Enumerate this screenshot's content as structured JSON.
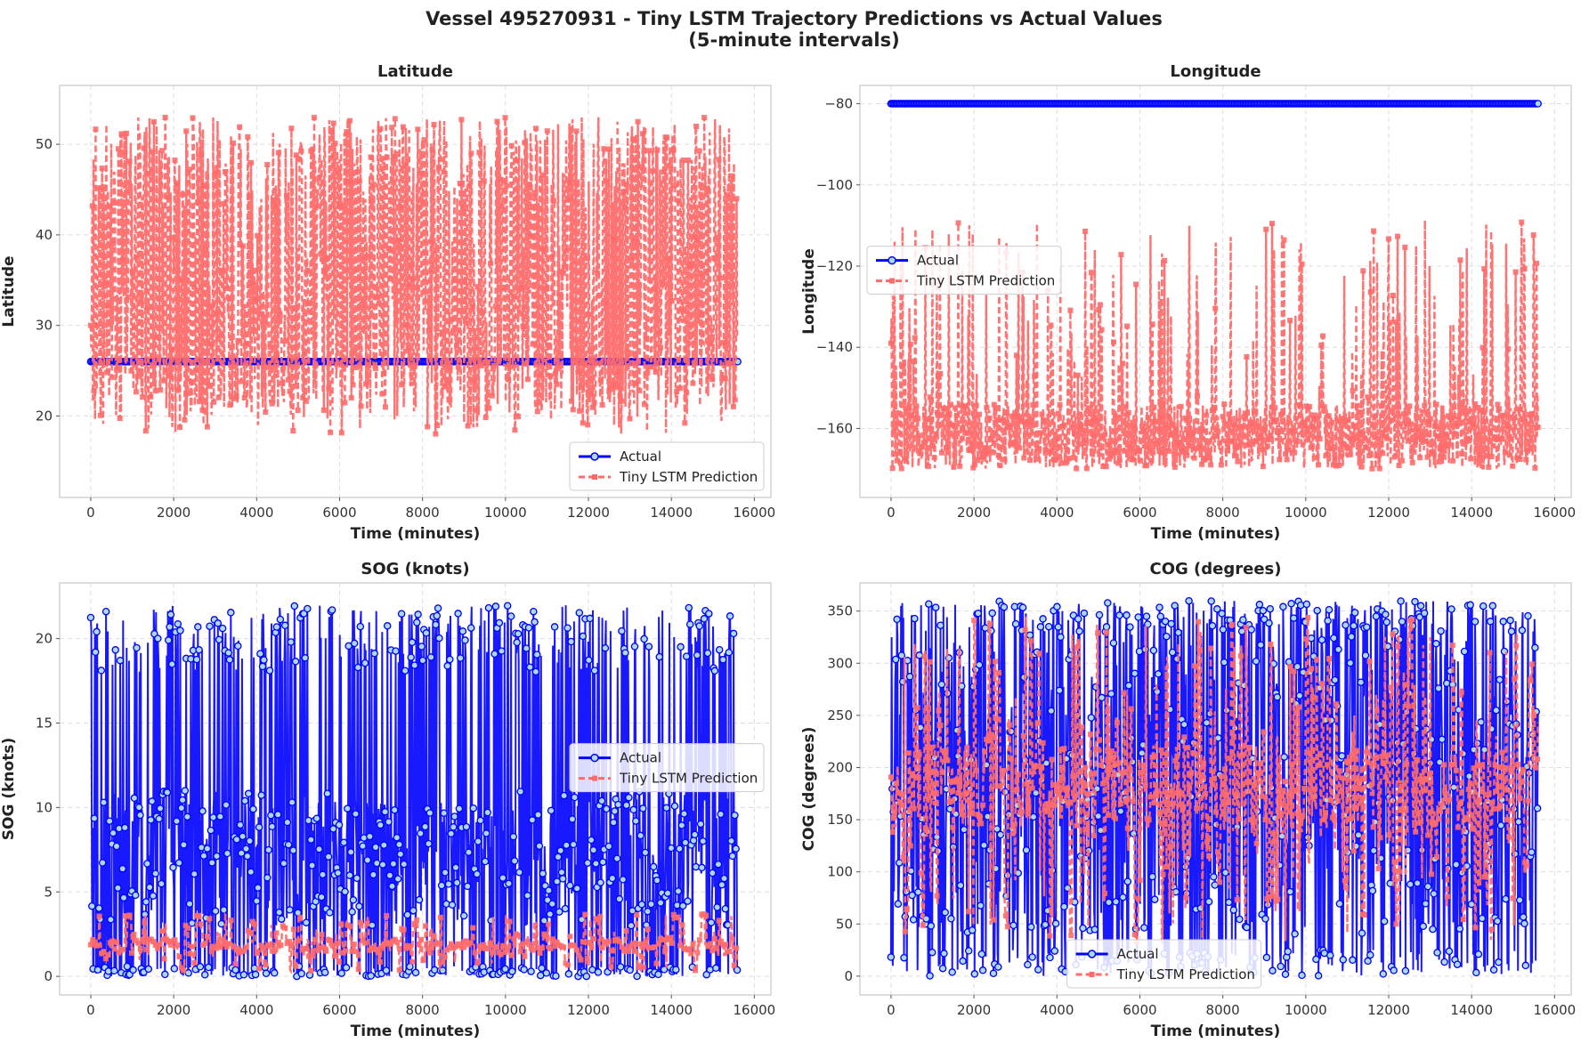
{
  "title_line1": "Vessel 495270931 - Tiny LSTM Trajectory Predictions vs Actual Values",
  "title_line2": "(5-minute intervals)",
  "colors": {
    "actual": "#0000ff",
    "actual_marker_fill": "#add8e6",
    "prediction": "#ff6b6b",
    "grid": "#dddddd",
    "frame": "#cccccc"
  },
  "chart_data": [
    {
      "type": "line",
      "title": "Latitude",
      "xlabel": "Time (minutes)",
      "ylabel": "Latitude",
      "xlim": [
        -750,
        16400
      ],
      "ylim": [
        11,
        56.5
      ],
      "xticks": [
        0,
        2000,
        4000,
        6000,
        8000,
        10000,
        12000,
        14000,
        16000
      ],
      "yticks": [
        20,
        30,
        40,
        50
      ],
      "legend": "lower-right",
      "grid": true,
      "series": [
        {
          "name": "Actual",
          "style": "actual",
          "value": 26.0,
          "x_range": [
            0,
            15600
          ],
          "interval": 5
        },
        {
          "name": "Tiny LSTM Prediction",
          "style": "prediction",
          "min": 13,
          "max": 55,
          "baseline": 30,
          "low_quantile": 18,
          "high_quantile": 53,
          "x_range": [
            0,
            15600
          ]
        }
      ]
    },
    {
      "type": "line",
      "title": "Longitude",
      "xlabel": "Time (minutes)",
      "ylabel": "Longitude",
      "xlim": [
        -750,
        16400
      ],
      "ylim": [
        -177,
        -75.5
      ],
      "xticks": [
        0,
        2000,
        4000,
        6000,
        8000,
        10000,
        12000,
        14000,
        16000
      ],
      "yticks": [
        -80,
        -100,
        -120,
        -140,
        -160
      ],
      "legend": "center-left",
      "grid": true,
      "series": [
        {
          "name": "Actual",
          "style": "actual",
          "value": -80.0,
          "x_range": [
            0,
            15600
          ],
          "interval": 5
        },
        {
          "name": "Tiny LSTM Prediction",
          "style": "prediction",
          "min": -172,
          "max": -108,
          "baseline": -162,
          "low_quantile": -168,
          "high_quantile": -110,
          "x_range": [
            0,
            15600
          ]
        }
      ]
    },
    {
      "type": "line",
      "title": "SOG (knots)",
      "xlabel": "Time (minutes)",
      "ylabel": "SOG (knots)",
      "xlim": [
        -750,
        16400
      ],
      "ylim": [
        -1.1,
        23.3
      ],
      "xticks": [
        0,
        2000,
        4000,
        6000,
        8000,
        10000,
        12000,
        14000,
        16000
      ],
      "yticks": [
        0,
        5,
        10,
        15,
        20
      ],
      "legend": "center-right",
      "grid": true,
      "series": [
        {
          "name": "Actual",
          "style": "actual",
          "min": 0,
          "max": 22,
          "baseline": 5,
          "x_range": [
            0,
            15600
          ]
        },
        {
          "name": "Tiny LSTM Prediction",
          "style": "prediction",
          "min": 0.3,
          "max": 3.7,
          "baseline": 1.8,
          "x_range": [
            0,
            15600
          ]
        }
      ]
    },
    {
      "type": "line",
      "title": "COG (degrees)",
      "xlabel": "Time (minutes)",
      "ylabel": "COG (degrees)",
      "xlim": [
        -750,
        16400
      ],
      "ylim": [
        -18,
        377
      ],
      "xticks": [
        0,
        2000,
        4000,
        6000,
        8000,
        10000,
        12000,
        14000,
        16000
      ],
      "yticks": [
        0,
        50,
        100,
        150,
        200,
        250,
        300,
        350
      ],
      "legend": "lower-center",
      "grid": true,
      "series": [
        {
          "name": "Actual",
          "style": "actual",
          "min": 0,
          "max": 360,
          "baseline": 180,
          "x_range": [
            0,
            15600
          ]
        },
        {
          "name": "Tiny LSTM Prediction",
          "style": "prediction",
          "min": 30,
          "max": 345,
          "baseline": 180,
          "x_range": [
            0,
            15600
          ]
        }
      ]
    }
  ]
}
